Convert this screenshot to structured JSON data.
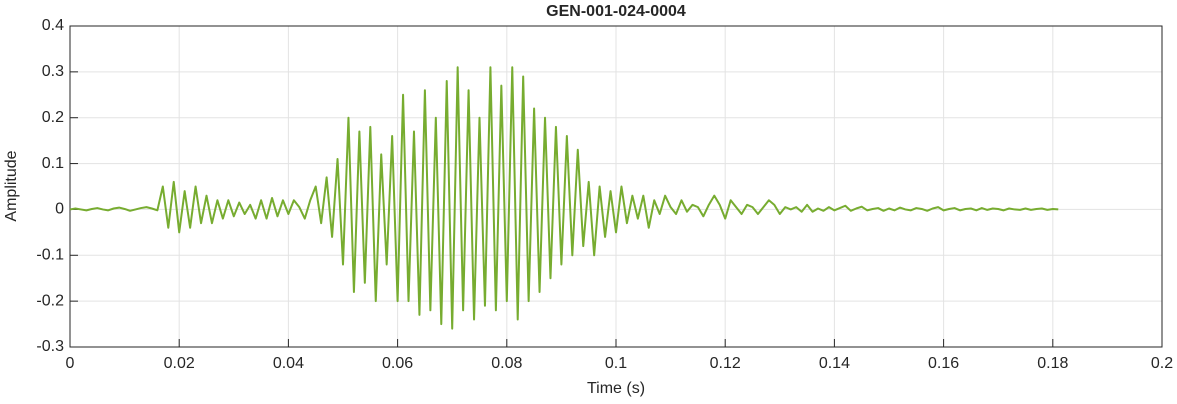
{
  "chart_data": {
    "type": "line",
    "title": "GEN-001-024-0004",
    "xlabel": "Time (s)",
    "ylabel": "Amplitude",
    "color": "#77ac30",
    "grid": true,
    "xlim": [
      0,
      0.2
    ],
    "xticks": [
      0,
      0.02,
      0.04,
      0.06,
      0.08,
      0.1,
      0.12,
      0.14,
      0.16,
      0.18,
      0.2
    ],
    "ylim": [
      -0.3,
      0.4
    ],
    "yticks": [
      -0.3,
      -0.2,
      -0.1,
      0,
      0.1,
      0.2,
      0.3,
      0.4
    ],
    "x": [
      0,
      0.001,
      0.002,
      0.003,
      0.004,
      0.005,
      0.006,
      0.007,
      0.008,
      0.009,
      0.01,
      0.011,
      0.012,
      0.013,
      0.014,
      0.015,
      0.016,
      0.017,
      0.018,
      0.019,
      0.02,
      0.021,
      0.022,
      0.023,
      0.024,
      0.025,
      0.026,
      0.027,
      0.028,
      0.029,
      0.03,
      0.031,
      0.032,
      0.033,
      0.034,
      0.035,
      0.036,
      0.037,
      0.038,
      0.039,
      0.04,
      0.041,
      0.042,
      0.043,
      0.044,
      0.045,
      0.046,
      0.047,
      0.048,
      0.049,
      0.05,
      0.051,
      0.052,
      0.053,
      0.054,
      0.055,
      0.056,
      0.057,
      0.058,
      0.059,
      0.06,
      0.061,
      0.062,
      0.063,
      0.064,
      0.065,
      0.066,
      0.067,
      0.068,
      0.069,
      0.07,
      0.071,
      0.072,
      0.073,
      0.074,
      0.075,
      0.076,
      0.077,
      0.078,
      0.079,
      0.08,
      0.081,
      0.082,
      0.083,
      0.084,
      0.085,
      0.086,
      0.087,
      0.088,
      0.089,
      0.09,
      0.091,
      0.092,
      0.093,
      0.094,
      0.095,
      0.096,
      0.097,
      0.098,
      0.099,
      0.1,
      0.101,
      0.102,
      0.103,
      0.104,
      0.105,
      0.106,
      0.107,
      0.108,
      0.109,
      0.11,
      0.111,
      0.112,
      0.113,
      0.114,
      0.115,
      0.116,
      0.117,
      0.118,
      0.119,
      0.12,
      0.121,
      0.122,
      0.123,
      0.124,
      0.125,
      0.126,
      0.127,
      0.128,
      0.129,
      0.13,
      0.131,
      0.132,
      0.133,
      0.134,
      0.135,
      0.136,
      0.137,
      0.138,
      0.139,
      0.14,
      0.141,
      0.142,
      0.143,
      0.144,
      0.145,
      0.146,
      0.147,
      0.148,
      0.149,
      0.15,
      0.151,
      0.152,
      0.153,
      0.154,
      0.155,
      0.156,
      0.157,
      0.158,
      0.159,
      0.16,
      0.161,
      0.162,
      0.163,
      0.164,
      0.165,
      0.166,
      0.167,
      0.168,
      0.169,
      0.17,
      0.171,
      0.172,
      0.173,
      0.174,
      0.175,
      0.176,
      0.177,
      0.178,
      0.179,
      0.18,
      0.181
    ],
    "values": [
      0,
      0.002,
      0,
      -0.002,
      0.001,
      0.003,
      0,
      -0.002,
      0.002,
      0.004,
      0.001,
      -0.003,
      0,
      0.003,
      0.005,
      0.002,
      -0.002,
      0.05,
      -0.04,
      0.06,
      -0.05,
      0.04,
      -0.04,
      0.05,
      -0.03,
      0.03,
      -0.03,
      0.02,
      -0.02,
      0.02,
      -0.015,
      0.015,
      -0.01,
      0.01,
      -0.02,
      0.02,
      -0.02,
      0.025,
      -0.015,
      0.02,
      -0.01,
      0.02,
      0.005,
      -0.02,
      0.02,
      0.05,
      -0.03,
      0.07,
      -0.06,
      0.11,
      -0.12,
      0.2,
      -0.18,
      0.17,
      -0.16,
      0.18,
      -0.2,
      0.12,
      -0.12,
      0.16,
      -0.2,
      0.25,
      -0.2,
      0.17,
      -0.23,
      0.26,
      -0.22,
      0.2,
      -0.25,
      0.28,
      -0.26,
      0.31,
      -0.22,
      0.26,
      -0.24,
      0.2,
      -0.21,
      0.31,
      -0.22,
      0.27,
      -0.2,
      0.31,
      -0.24,
      0.29,
      -0.2,
      0.22,
      -0.18,
      0.2,
      -0.15,
      0.18,
      -0.12,
      0.16,
      -0.1,
      0.13,
      -0.08,
      0.06,
      -0.1,
      0.05,
      -0.06,
      0.04,
      -0.05,
      0.05,
      -0.03,
      0.03,
      -0.02,
      0.03,
      -0.04,
      0.02,
      -0.01,
      0.03,
      0.005,
      -0.01,
      0.02,
      -0.005,
      0.01,
      0.005,
      -0.015,
      0.01,
      0.03,
      0.01,
      -0.02,
      0.02,
      0.005,
      -0.01,
      0.01,
      0.005,
      -0.01,
      0.005,
      0.02,
      0.01,
      -0.01,
      0.005,
      0,
      0.005,
      -0.005,
      0.01,
      -0.005,
      0.002,
      -0.003,
      0.005,
      -0.002,
      0.003,
      0.008,
      -0.003,
      0.002,
      0.006,
      -0.002,
      0.001,
      0.003,
      -0.003,
      0.002,
      -0.002,
      0.004,
      0,
      -0.002,
      0.003,
      0.001,
      -0.003,
      0.002,
      0.005,
      -0.002,
      0.001,
      0.003,
      -0.002,
      0.001,
      0.002,
      -0.002,
      0.003,
      -0.001,
      0.002,
      0.001,
      -0.002,
      0.002,
      0,
      -0.001,
      0.002,
      -0.001,
      0.001,
      0.002,
      -0.001,
      0.001,
      0
    ]
  }
}
